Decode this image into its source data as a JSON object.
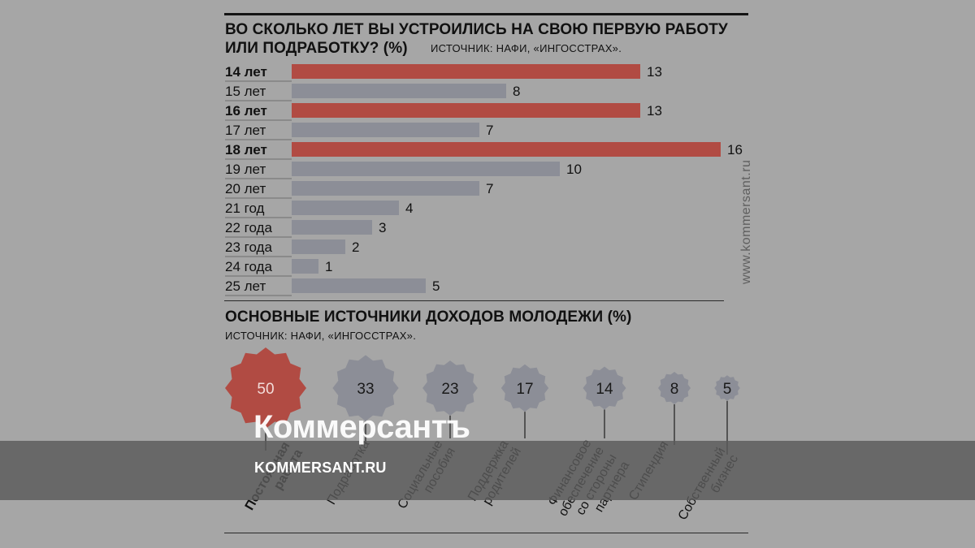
{
  "colors": {
    "accent": "#b14b43",
    "bar": "#8c8e97",
    "background": "#a6a6a6",
    "text": "#111111"
  },
  "chart_data": [
    {
      "type": "bar",
      "orientation": "horizontal",
      "title_line1": "ВО СКОЛЬКО ЛЕТ ВЫ УСТРОИЛИСЬ НА СВОЮ ПЕРВУЮ РАБОТУ",
      "title_line2": "ИЛИ ПОДРАБОТКУ? (%)",
      "source": "ИСТОЧНИК: НАФИ, «ИНГОССТРАХ».",
      "categories": [
        "14 лет",
        "15 лет",
        "16 лет",
        "17 лет",
        "18 лет",
        "19 лет",
        "20 лет",
        "21 год",
        "22 года",
        "23 года",
        "24 года",
        "25 лет"
      ],
      "values": [
        13,
        8,
        13,
        7,
        16,
        10,
        7,
        4,
        3,
        2,
        1,
        5
      ],
      "highlighted": [
        true,
        false,
        true,
        false,
        true,
        false,
        false,
        false,
        false,
        false,
        false,
        false
      ],
      "xlim": [
        0,
        16
      ]
    },
    {
      "type": "bubble",
      "title": "ОСНОВНЫЕ ИСТОЧНИКИ ДОХОДОВ МОЛОДЕЖИ (%)",
      "source": "ИСТОЧНИК: НАФИ, «ИНГОССТРАХ».",
      "items": [
        {
          "label": [
            "Постоянная",
            "работа"
          ],
          "value": 50,
          "highlighted": true
        },
        {
          "label": [
            "Подработка"
          ],
          "value": 33,
          "highlighted": false
        },
        {
          "label": [
            "Социальные",
            "пособия"
          ],
          "value": 23,
          "highlighted": false
        },
        {
          "label": [
            "Поддержка",
            "родителей"
          ],
          "value": 17,
          "highlighted": false
        },
        {
          "label": [
            "Финансовое",
            "обеспечение",
            "со стороны",
            "партнера"
          ],
          "value": 14,
          "highlighted": false
        },
        {
          "label": [
            "Стипендия"
          ],
          "value": 8,
          "highlighted": false
        },
        {
          "label": [
            "Собственный",
            "бизнес"
          ],
          "value": 5,
          "highlighted": false
        }
      ]
    }
  ],
  "side_url": "www.kommersant.ru",
  "watermark": {
    "logo": "Коммерсантъ",
    "url": "KOMMERSANT.RU"
  }
}
